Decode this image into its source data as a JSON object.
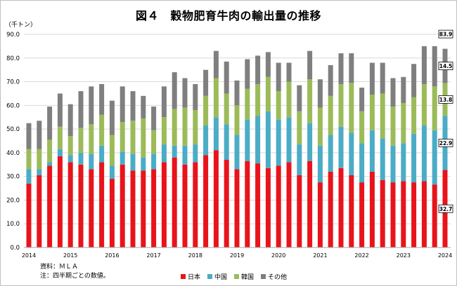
{
  "chart_data": {
    "type": "bar",
    "stacked": true,
    "title": "図４　穀物肥育牛肉の輸出量の推移",
    "unit_label": "（千トン）",
    "ylim": [
      0,
      90
    ],
    "y_ticks": [
      "0.0",
      "10.0",
      "20.0",
      "30.0",
      "40.0",
      "50.0",
      "60.0",
      "70.0",
      "80.0",
      "90.0"
    ],
    "grid": true,
    "legend_position": "bottom",
    "categories": [
      "2014",
      "",
      "",
      "",
      "2015",
      "",
      "",
      "",
      "2016",
      "",
      "",
      "",
      "2017",
      "",
      "",
      "",
      "2018",
      "",
      "",
      "",
      "2019",
      "",
      "",
      "",
      "2020",
      "",
      "",
      "",
      "2021",
      "",
      "",
      "",
      "2022",
      "",
      "",
      "",
      "2023",
      "",
      "",
      "",
      "2024"
    ],
    "series": [
      {
        "name": "日本",
        "color": "#e8141b",
        "values": [
          27.0,
          30.5,
          34.5,
          38.5,
          36.0,
          35.0,
          33.0,
          36.0,
          29.0,
          35.0,
          32.5,
          32.5,
          33.0,
          36.0,
          38.0,
          35.0,
          36.0,
          39.0,
          41.0,
          37.0,
          33.0,
          36.5,
          35.5,
          33.5,
          34.5,
          36.0,
          30.5,
          36.5,
          27.5,
          32.0,
          33.5,
          30.5,
          27.5,
          32.0,
          28.5,
          27.5,
          28.0,
          27.5,
          28.0,
          26.5,
          32.7
        ]
      },
      {
        "name": "中国",
        "color": "#4bacc6",
        "values": [
          6.0,
          2.5,
          1.5,
          3.0,
          3.0,
          5.0,
          6.5,
          7.0,
          5.5,
          5.5,
          7.0,
          5.5,
          6.5,
          7.5,
          5.0,
          8.0,
          7.5,
          12.5,
          14.0,
          15.0,
          14.5,
          17.5,
          20.0,
          24.0,
          19.5,
          19.0,
          13.0,
          16.0,
          15.5,
          15.5,
          17.5,
          18.0,
          16.5,
          17.5,
          17.5,
          15.5,
          16.0,
          20.5,
          23.5,
          23.0,
          22.9
        ]
      },
      {
        "name": "韓国",
        "color": "#9bbb59",
        "values": [
          8.5,
          8.5,
          9.5,
          9.5,
          8.0,
          10.5,
          12.5,
          13.0,
          13.0,
          12.5,
          14.0,
          16.5,
          10.0,
          11.5,
          15.5,
          16.0,
          14.5,
          12.5,
          16.5,
          13.0,
          12.5,
          13.0,
          13.5,
          14.5,
          12.0,
          15.0,
          14.0,
          18.5,
          16.0,
          16.5,
          18.0,
          21.0,
          13.5,
          15.0,
          19.0,
          16.5,
          17.0,
          15.5,
          17.5,
          18.5,
          13.8
        ]
      },
      {
        "name": "その他",
        "color": "#7f7f7f",
        "values": [
          11.0,
          12.0,
          14.0,
          14.0,
          13.5,
          15.5,
          16.0,
          13.0,
          14.5,
          15.0,
          12.5,
          9.5,
          10.0,
          13.0,
          15.5,
          12.5,
          11.0,
          11.0,
          11.5,
          13.5,
          10.5,
          12.5,
          12.0,
          10.5,
          12.0,
          8.0,
          11.0,
          12.0,
          12.0,
          13.0,
          13.0,
          12.5,
          10.0,
          13.5,
          13.0,
          12.0,
          11.0,
          14.0,
          16.0,
          17.0,
          14.5
        ]
      }
    ],
    "data_labels": {
      "category_index": 40,
      "segment_labels": [
        "32.7",
        "22.9",
        "13.8",
        "14.5"
      ],
      "total_label": "83.9"
    }
  },
  "notes": {
    "source": "資料：ＭＬＡ",
    "note": "注：四半期ごとの数値。"
  }
}
